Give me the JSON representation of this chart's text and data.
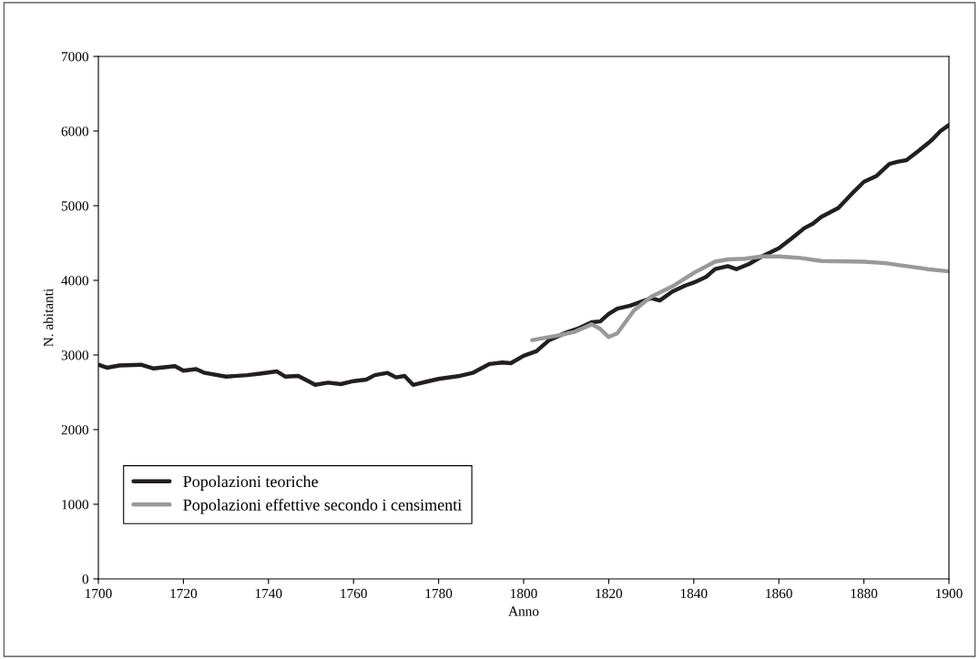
{
  "chart_data": {
    "type": "line",
    "xlabel": "Anno",
    "ylabel": "N. abitanti",
    "xlim": [
      1700,
      1900
    ],
    "xticks": [
      1700,
      1720,
      1740,
      1760,
      1780,
      1800,
      1820,
      1840,
      1860,
      1880,
      1900
    ],
    "ylim": [
      0,
      7000
    ],
    "yticks": [
      0,
      1000,
      2000,
      3000,
      4000,
      5000,
      6000,
      7000
    ],
    "grid": false,
    "legend": "bottom left",
    "marker": "none",
    "line_style": "solid",
    "series": [
      {
        "name": "Popolazioni teoriche",
        "color": "#231f20",
        "x": [
          1700,
          1702,
          1705,
          1710,
          1713,
          1718,
          1720,
          1723,
          1725,
          1730,
          1735,
          1738,
          1742,
          1744,
          1747,
          1751,
          1754,
          1757,
          1760,
          1763,
          1765,
          1768,
          1770,
          1772,
          1774,
          1777,
          1780,
          1785,
          1788,
          1792,
          1795,
          1797,
          1800,
          1803,
          1806,
          1810,
          1813,
          1816,
          1818,
          1820,
          1822,
          1825,
          1828,
          1830,
          1832,
          1835,
          1838,
          1840,
          1843,
          1845,
          1848,
          1850,
          1853,
          1856,
          1860,
          1863,
          1866,
          1868,
          1870,
          1874,
          1877,
          1880,
          1883,
          1886,
          1888,
          1890,
          1893,
          1896,
          1898,
          1900
        ],
        "values": [
          2870,
          2830,
          2860,
          2870,
          2820,
          2850,
          2790,
          2810,
          2760,
          2710,
          2730,
          2750,
          2780,
          2710,
          2720,
          2600,
          2630,
          2610,
          2650,
          2670,
          2730,
          2760,
          2700,
          2720,
          2600,
          2640,
          2680,
          2720,
          2760,
          2880,
          2900,
          2890,
          2990,
          3050,
          3200,
          3300,
          3360,
          3440,
          3450,
          3550,
          3620,
          3660,
          3720,
          3760,
          3730,
          3850,
          3930,
          3970,
          4050,
          4150,
          4190,
          4150,
          4220,
          4320,
          4430,
          4560,
          4700,
          4760,
          4850,
          4970,
          5150,
          5320,
          5400,
          5560,
          5590,
          5610,
          5740,
          5880,
          6000,
          6080
        ]
      },
      {
        "name": "Popolazioni effettive secondo i censimenti",
        "color": "#999999",
        "x": [
          1802,
          1808,
          1812,
          1816,
          1818,
          1820,
          1822,
          1826,
          1830,
          1835,
          1840,
          1845,
          1848,
          1852,
          1856,
          1860,
          1865,
          1870,
          1880,
          1885,
          1890,
          1895,
          1900
        ],
        "values": [
          3200,
          3260,
          3310,
          3410,
          3350,
          3240,
          3290,
          3600,
          3780,
          3920,
          4100,
          4250,
          4280,
          4290,
          4320,
          4320,
          4300,
          4260,
          4250,
          4230,
          4190,
          4150,
          4120
        ]
      }
    ]
  }
}
